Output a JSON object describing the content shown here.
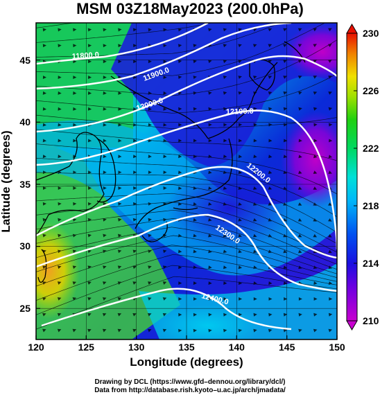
{
  "title": "MSM 03Z18May2023 (200.0hPa)",
  "x_axis": {
    "label": "Longitude (degrees)",
    "ticks": [
      "120",
      "125",
      "130",
      "135",
      "140",
      "145",
      "150"
    ]
  },
  "y_axis": {
    "label": "Latitude  (degrees)",
    "ticks": [
      "25",
      "30",
      "35",
      "40",
      "45"
    ]
  },
  "colorbar": {
    "ticks": [
      "230",
      "226",
      "222",
      "218",
      "214",
      "210"
    ],
    "min": 210,
    "max": 230
  },
  "contour_labels": [
    "11800.0",
    "11900.0",
    "12000.0",
    "12100.0",
    "12200.0",
    "12300.0",
    "12400.0"
  ],
  "credits": [
    "Drawing by DCL (https://www.gfd–dennou.org/library/dcl/)",
    "Data from http://database.rish.kyoto–u.ac.jp/arch/jmadata/"
  ],
  "map_data": {
    "type": "geopotential-height-wind-map",
    "lon_range": [
      120,
      150
    ],
    "lat_range": [
      22.5,
      48
    ],
    "pressure_level": "200.0hPa",
    "shading_variable_range": [
      210,
      230
    ],
    "shading_note": "magenta (210) through blue, cyan, green, yellow to red (230)",
    "contours": [
      {
        "value": 11800.0,
        "lon": 124.5,
        "lat": 45.7
      },
      {
        "value": 11900.0,
        "lon": 133.5,
        "lat": 44.3
      },
      {
        "value": 12000.0,
        "lon": 130.7,
        "lat": 41.7
      },
      {
        "value": 12100.0,
        "lon": 140.7,
        "lat": 40.2
      },
      {
        "value": 12200.0,
        "lon": 142.3,
        "lat": 36.0
      },
      {
        "value": 12300.0,
        "lon": 137.6,
        "lat": 31.3
      },
      {
        "value": 12400.0,
        "lon": 137.6,
        "lat": 24.7
      }
    ]
  }
}
